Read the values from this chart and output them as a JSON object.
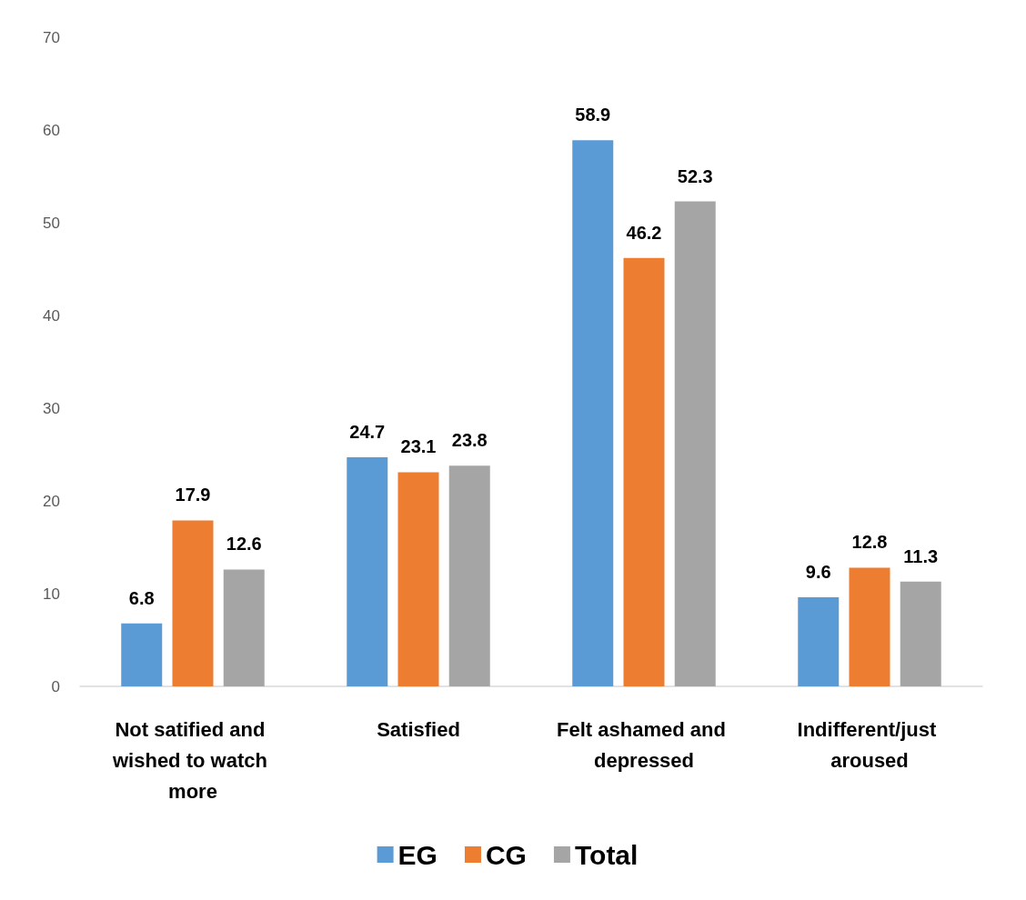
{
  "chart_data": {
    "type": "bar",
    "categories": [
      "Not satified and wished to watch more",
      "Satisfied",
      "Felt ashamed and depressed",
      "Indifferent/just aroused"
    ],
    "series": [
      {
        "name": "EG",
        "color": "#5b9bd5",
        "values": [
          6.8,
          24.7,
          58.9,
          9.6
        ]
      },
      {
        "name": "CG",
        "color": "#ed7d31",
        "values": [
          17.9,
          23.1,
          46.2,
          12.8
        ]
      },
      {
        "name": "Total",
        "color": "#a5a5a5",
        "values": [
          12.6,
          23.8,
          52.3,
          11.3
        ]
      }
    ],
    "ylim": [
      0,
      70
    ],
    "yticks": [
      0,
      10,
      20,
      30,
      40,
      50,
      60,
      70
    ],
    "grid": false,
    "legend": "bottom",
    "data_labels": true
  }
}
